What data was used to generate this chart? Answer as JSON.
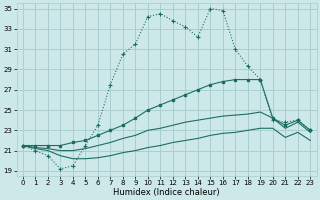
{
  "xlabel": "Humidex (Indice chaleur)",
  "background_color": "#cde8e8",
  "grid_color": "#aacece",
  "line_color": "#1a6e60",
  "xlim": [
    -0.5,
    23.5
  ],
  "ylim": [
    18.5,
    35.5
  ],
  "yticks": [
    19,
    21,
    23,
    25,
    27,
    29,
    31,
    33,
    35
  ],
  "xticks": [
    0,
    1,
    2,
    3,
    4,
    5,
    6,
    7,
    8,
    9,
    10,
    11,
    12,
    13,
    14,
    15,
    16,
    17,
    18,
    19,
    20,
    21,
    22,
    23
  ],
  "line1_x": [
    0,
    1,
    2,
    3,
    4,
    5,
    6,
    7,
    8,
    9,
    10,
    11,
    12,
    13,
    14,
    15,
    16,
    17,
    18,
    19,
    20,
    21,
    22,
    23
  ],
  "line1_y": [
    21.5,
    21.0,
    20.5,
    19.2,
    19.5,
    21.5,
    23.5,
    27.5,
    30.5,
    31.5,
    34.2,
    34.5,
    33.8,
    33.2,
    32.2,
    35.0,
    34.8,
    31.0,
    29.3,
    28.0,
    24.0,
    23.8,
    24.0,
    23.0
  ],
  "line2_x": [
    0,
    1,
    2,
    3,
    4,
    5,
    6,
    7,
    8,
    9,
    10,
    11,
    12,
    13,
    14,
    15,
    16,
    17,
    18,
    19,
    20,
    21,
    22,
    23
  ],
  "line2_y": [
    21.5,
    21.5,
    21.5,
    21.5,
    21.8,
    22.0,
    22.5,
    23.0,
    23.5,
    24.2,
    25.0,
    25.5,
    26.0,
    26.5,
    27.0,
    27.5,
    27.8,
    28.0,
    28.0,
    28.0,
    24.2,
    23.5,
    24.0,
    23.0
  ],
  "line3_x": [
    0,
    1,
    2,
    3,
    4,
    5,
    6,
    7,
    8,
    9,
    10,
    11,
    12,
    13,
    14,
    15,
    16,
    17,
    18,
    19,
    20,
    21,
    22,
    23
  ],
  "line3_y": [
    21.5,
    21.3,
    21.2,
    21.0,
    21.0,
    21.2,
    21.5,
    21.8,
    22.2,
    22.5,
    23.0,
    23.2,
    23.5,
    23.8,
    24.0,
    24.2,
    24.4,
    24.5,
    24.6,
    24.8,
    24.2,
    23.2,
    23.8,
    22.8
  ],
  "line4_x": [
    0,
    1,
    2,
    3,
    4,
    5,
    6,
    7,
    8,
    9,
    10,
    11,
    12,
    13,
    14,
    15,
    16,
    17,
    18,
    19,
    20,
    21,
    22,
    23
  ],
  "line4_y": [
    21.5,
    21.2,
    21.0,
    20.5,
    20.2,
    20.2,
    20.3,
    20.5,
    20.8,
    21.0,
    21.3,
    21.5,
    21.8,
    22.0,
    22.2,
    22.5,
    22.7,
    22.8,
    23.0,
    23.2,
    23.2,
    22.3,
    22.8,
    22.0
  ]
}
